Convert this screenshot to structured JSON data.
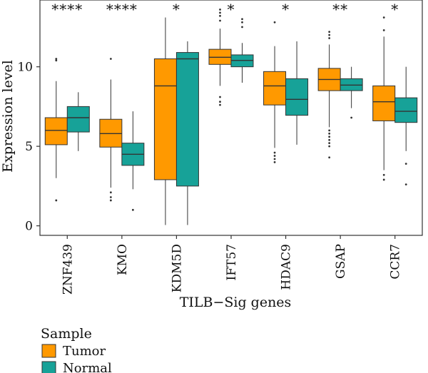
{
  "chart_data": {
    "type": "box",
    "xlabel": "TILB−Sig genes",
    "ylabel": "Expression level",
    "ylim": [
      -0.6,
      14.2
    ],
    "yticks": [
      0,
      5,
      10
    ],
    "legend": {
      "title": "Sample",
      "position": "bottom-left",
      "entries": [
        {
          "name": "Tumor",
          "color": "#FF9900"
        },
        {
          "name": "Normal",
          "color": "#17A298"
        }
      ]
    },
    "categories": [
      "ZNF439",
      "KMO",
      "KDM5D",
      "IFT57",
      "HDAC9",
      "GSAP",
      "CCR7"
    ],
    "significance": [
      "****",
      "****",
      "*",
      "*",
      "*",
      "**",
      "*"
    ],
    "series": [
      {
        "name": "Tumor",
        "color": "#FF9900",
        "boxes": [
          {
            "whisker_low": 3.0,
            "q1": 5.1,
            "median": 6.0,
            "q3": 6.8,
            "whisker_high": 9.1,
            "outliers": [
              10.4,
              10.5,
              1.6
            ]
          },
          {
            "whisker_low": 2.4,
            "q1": 4.95,
            "median": 5.8,
            "q3": 6.7,
            "whisker_high": 9.2,
            "outliers": [
              10.5,
              2.1,
              1.8,
              1.6
            ]
          },
          {
            "whisker_low": 0.05,
            "q1": 2.9,
            "median": 8.8,
            "q3": 10.5,
            "whisker_high": 13.1,
            "outliers": []
          },
          {
            "whisker_low": 8.8,
            "q1": 10.15,
            "median": 10.6,
            "q3": 11.1,
            "whisker_high": 12.4,
            "outliers": [
              13.6,
              13.4,
              13.2,
              12.9,
              8.1,
              7.8,
              7.6
            ]
          },
          {
            "whisker_low": 4.9,
            "q1": 7.6,
            "median": 8.8,
            "q3": 9.7,
            "whisker_high": 11.3,
            "outliers": [
              12.8,
              4.6,
              4.4,
              4.2,
              4.0
            ]
          },
          {
            "whisker_low": 6.2,
            "q1": 8.5,
            "median": 9.2,
            "q3": 9.9,
            "whisker_high": 11.4,
            "outliers": [
              12.2,
              12.0,
              11.8,
              6.0,
              5.8,
              5.6,
              5.4,
              5.2,
              5.0,
              4.3
            ]
          },
          {
            "whisker_low": 3.5,
            "q1": 6.6,
            "median": 7.8,
            "q3": 8.8,
            "whisker_high": 11.9,
            "outliers": [
              13.1,
              12.3,
              3.2,
              2.9
            ]
          }
        ]
      },
      {
        "name": "Normal",
        "color": "#17A298",
        "boxes": [
          {
            "whisker_low": 4.7,
            "q1": 5.9,
            "median": 6.8,
            "q3": 7.5,
            "whisker_high": 8.4,
            "outliers": []
          },
          {
            "whisker_low": 2.3,
            "q1": 3.8,
            "median": 4.5,
            "q3": 5.2,
            "whisker_high": 7.2,
            "outliers": [
              1.0
            ]
          },
          {
            "whisker_low": 0.05,
            "q1": 2.5,
            "median": 10.5,
            "q3": 10.9,
            "whisker_high": 11.6,
            "outliers": []
          },
          {
            "whisker_low": 9.0,
            "q1": 10.0,
            "median": 10.4,
            "q3": 10.75,
            "whisker_high": 11.5,
            "outliers": [
              13.0,
              12.8,
              12.5
            ]
          },
          {
            "whisker_low": 5.1,
            "q1": 6.95,
            "median": 7.95,
            "q3": 9.25,
            "whisker_high": 11.6,
            "outliers": []
          },
          {
            "whisker_low": 7.4,
            "q1": 8.5,
            "median": 8.85,
            "q3": 9.25,
            "whisker_high": 10.0,
            "outliers": [
              6.8
            ]
          },
          {
            "whisker_low": 4.7,
            "q1": 6.5,
            "median": 7.2,
            "q3": 8.05,
            "whisker_high": 10.0,
            "outliers": [
              3.9,
              2.6
            ]
          }
        ]
      }
    ]
  }
}
